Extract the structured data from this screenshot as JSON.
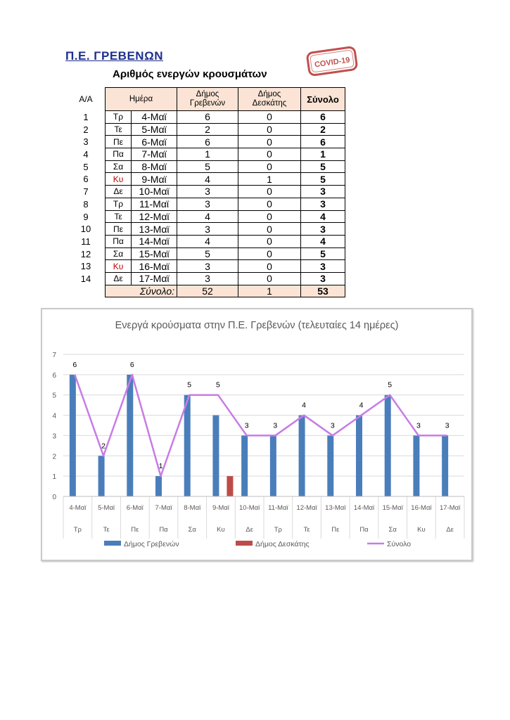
{
  "header": {
    "region": "Π.Ε. ΓΡΕΒΕΝΩΝ",
    "stamp_text": "COVID-19",
    "table_title": "Αριθμός ενεργών κρουσμάτων"
  },
  "table": {
    "aa_header": "Α/Α",
    "headers": {
      "day": "Ημέρα",
      "grevena_line1": "Δήμος",
      "grevena_line2": "Γρεβενών",
      "deskati_line1": "Δήμος",
      "deskati_line2": "Δεσκάτης",
      "total": "Σύνολο"
    },
    "rows": [
      {
        "aa": "1",
        "day": "Τρ",
        "date": "4-Μαϊ",
        "grevena": "6",
        "deskati": "0",
        "total": "6"
      },
      {
        "aa": "2",
        "day": "Τε",
        "date": "5-Μαϊ",
        "grevena": "2",
        "deskati": "0",
        "total": "2"
      },
      {
        "aa": "3",
        "day": "Πε",
        "date": "6-Μαϊ",
        "grevena": "6",
        "deskati": "0",
        "total": "6"
      },
      {
        "aa": "4",
        "day": "Πα",
        "date": "7-Μαϊ",
        "grevena": "1",
        "deskati": "0",
        "total": "1"
      },
      {
        "aa": "5",
        "day": "Σα",
        "date": "8-Μαϊ",
        "grevena": "5",
        "deskati": "0",
        "total": "5"
      },
      {
        "aa": "6",
        "day": "Κυ",
        "date": "9-Μαϊ",
        "grevena": "4",
        "deskati": "1",
        "total": "5"
      },
      {
        "aa": "7",
        "day": "Δε",
        "date": "10-Μαϊ",
        "grevena": "3",
        "deskati": "0",
        "total": "3"
      },
      {
        "aa": "8",
        "day": "Τρ",
        "date": "11-Μαϊ",
        "grevena": "3",
        "deskati": "0",
        "total": "3"
      },
      {
        "aa": "9",
        "day": "Τε",
        "date": "12-Μαϊ",
        "grevena": "4",
        "deskati": "0",
        "total": "4"
      },
      {
        "aa": "10",
        "day": "Πε",
        "date": "13-Μαϊ",
        "grevena": "3",
        "deskati": "0",
        "total": "3"
      },
      {
        "aa": "11",
        "day": "Πα",
        "date": "14-Μαϊ",
        "grevena": "4",
        "deskati": "0",
        "total": "4"
      },
      {
        "aa": "12",
        "day": "Σα",
        "date": "15-Μαϊ",
        "grevena": "5",
        "deskati": "0",
        "total": "5"
      },
      {
        "aa": "13",
        "day": "Κυ",
        "date": "16-Μαϊ",
        "grevena": "3",
        "deskati": "0",
        "total": "3"
      },
      {
        "aa": "14",
        "day": "Δε",
        "date": "17-Μαϊ",
        "grevena": "3",
        "deskati": "0",
        "total": "3"
      }
    ],
    "sum_row": {
      "label": "Σύνολο:",
      "grevena": "52",
      "deskati": "1",
      "total": "53"
    },
    "sunday_color": "#c00000"
  },
  "chart_data": {
    "type": "bar",
    "title": "Ενεργά κρούσματα στην Π.Ε. Γρεβενών (τελευταίες 14 ημέρες)",
    "categories": [
      "4-Μαϊ",
      "5-Μαϊ",
      "6-Μαϊ",
      "7-Μαϊ",
      "8-Μαϊ",
      "9-Μαϊ",
      "10-Μαϊ",
      "11-Μαϊ",
      "12-Μαϊ",
      "13-Μαϊ",
      "14-Μαϊ",
      "15-Μαϊ",
      "16-Μαϊ",
      "17-Μαϊ"
    ],
    "days": [
      "Τρ",
      "Τε",
      "Πε",
      "Πα",
      "Σα",
      "Κυ",
      "Δε",
      "Τρ",
      "Τε",
      "Πε",
      "Πα",
      "Σα",
      "Κυ",
      "Δε"
    ],
    "series": [
      {
        "name": "Δήμος Γρεβενών",
        "kind": "bar",
        "color": "#4a7ebb",
        "values": [
          6,
          2,
          6,
          1,
          5,
          4,
          3,
          3,
          4,
          3,
          4,
          5,
          3,
          3
        ]
      },
      {
        "name": "Δήμος Δεσκάτης",
        "kind": "bar",
        "color": "#be4b48",
        "values": [
          0,
          0,
          0,
          0,
          0,
          1,
          0,
          0,
          0,
          0,
          0,
          0,
          0,
          0
        ]
      },
      {
        "name": "Σύνολο",
        "kind": "line",
        "color": "#c77ce6",
        "values": [
          6,
          2,
          6,
          1,
          5,
          5,
          3,
          3,
          4,
          3,
          4,
          5,
          3,
          3
        ]
      }
    ],
    "ylim": [
      0,
      7
    ],
    "yticks": [
      0,
      1,
      2,
      3,
      4,
      5,
      6,
      7
    ],
    "grid": true,
    "legend": "bottom",
    "xlabel": "",
    "ylabel": ""
  }
}
